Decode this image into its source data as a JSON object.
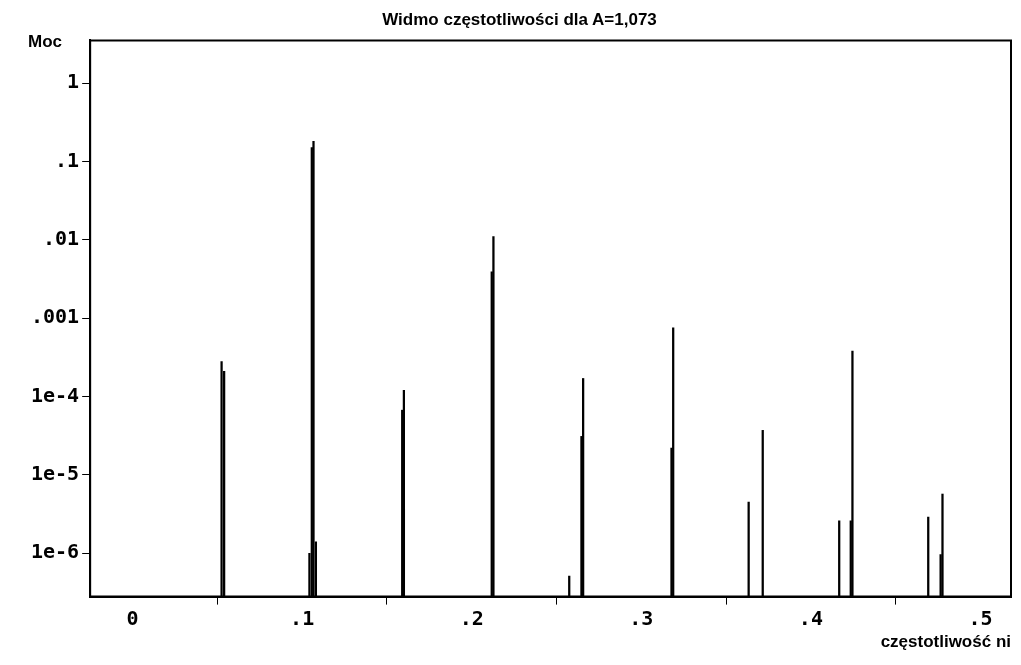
{
  "chart_data": {
    "type": "bar",
    "title": "Widmo częstotliwości dla A=1,073",
    "xlabel": "częstotliwość ni",
    "ylabel": "Moc",
    "color": "#000000",
    "x": [
      0.0525,
      0.054,
      0.1043,
      0.1057,
      0.1067,
      0.1081,
      0.159,
      0.16,
      0.2118,
      0.2128,
      0.2575,
      0.2647,
      0.2657,
      0.3178,
      0.3188,
      0.3633,
      0.3716,
      0.4167,
      0.4235,
      0.4245,
      0.4692,
      0.4765,
      0.4776
    ],
    "values": [
      0.00028,
      0.00021,
      1e-06,
      0.15,
      0.18,
      1.4e-06,
      6.7e-05,
      0.00012,
      0.0039,
      0.011,
      5.1e-07,
      3.1e-05,
      0.00017,
      2.2e-05,
      0.00075,
      4.5e-06,
      3.7e-05,
      2.6e-06,
      2.6e-06,
      0.00038,
      2.9e-06,
      9.6e-07,
      5.7e-06
    ],
    "log": "y",
    "grid": false,
    "legend": false,
    "xlim": [
      -0.025,
      0.518
    ],
    "xticks": [
      0,
      {
        "value": 0.1,
        "label": ".1"
      },
      {
        "value": 0.2,
        "label": ".2"
      },
      {
        "value": 0.3,
        "label": ".3"
      },
      {
        "value": 0.4,
        "label": ".4"
      },
      {
        "value": 0.5,
        "label": ".5"
      }
    ],
    "ylim": [
      2.8e-07,
      3.5
    ],
    "yticks": [
      1,
      {
        "value": 0.1,
        "label": ".1"
      },
      {
        "value": 0.01,
        "label": ".01"
      },
      {
        "value": 0.001,
        "label": ".001"
      },
      {
        "value": 0.0001,
        "label": "1e-4"
      },
      {
        "value": 1e-05,
        "label": "1e-5"
      },
      {
        "value": 1e-06,
        "label": "1e-6"
      }
    ]
  }
}
